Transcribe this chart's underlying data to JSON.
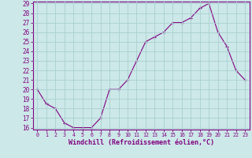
{
  "x": [
    0,
    1,
    2,
    3,
    4,
    5,
    6,
    7,
    8,
    9,
    10,
    11,
    12,
    13,
    14,
    15,
    16,
    17,
    18,
    19,
    20,
    21,
    22,
    23
  ],
  "y": [
    20,
    18.5,
    18,
    16.5,
    16,
    16,
    16,
    17,
    20,
    20,
    21,
    23,
    25,
    25.5,
    26,
    27,
    27,
    27.5,
    28.5,
    29,
    26,
    24.5,
    22,
    21
  ],
  "line_color": "#800080",
  "marker": "+",
  "bg_color": "#cce8e8",
  "grid_color": "#aacfcf",
  "axis_color": "#800080",
  "tick_color": "#800080",
  "xlabel": "Windchill (Refroidissement éolien,°C)",
  "ylim": [
    16,
    29
  ],
  "xlim": [
    -0.5,
    23.5
  ],
  "yticks": [
    16,
    17,
    18,
    19,
    20,
    21,
    22,
    23,
    24,
    25,
    26,
    27,
    28,
    29
  ],
  "xticks": [
    0,
    1,
    2,
    3,
    4,
    5,
    6,
    7,
    8,
    9,
    10,
    11,
    12,
    13,
    14,
    15,
    16,
    17,
    18,
    19,
    20,
    21,
    22,
    23
  ],
  "xlabel_fontsize": 6.0,
  "ytick_fontsize": 5.5,
  "xtick_fontsize": 4.8
}
